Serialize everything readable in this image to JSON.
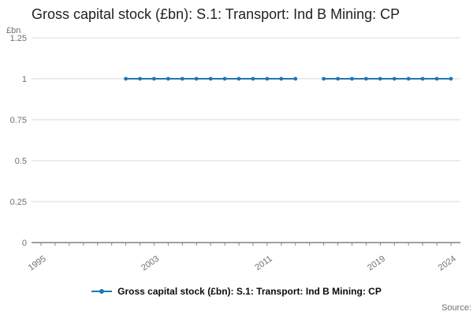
{
  "header": {
    "title": "Gross capital stock (£bn): S.1: Transport: Ind B Mining: CP"
  },
  "chart_data": {
    "type": "line",
    "title": "Gross capital stock (£bn): S.1: Transport: Ind B Mining: CP",
    "xlabel": "",
    "ylabel": "£bn",
    "ylim": [
      0,
      1.25
    ],
    "y_ticks": [
      0,
      0.25,
      0.5,
      0.75,
      1,
      1.25
    ],
    "x_range": [
      1995,
      2024
    ],
    "x_ticks": [
      1995,
      2003,
      2011,
      2019,
      2024
    ],
    "grid": true,
    "legend_position": "bottom",
    "series": [
      {
        "name": "Gross capital stock (£bn): S.1: Transport: Ind B Mining: CP",
        "color": "#1f77b4",
        "x": [
          2001,
          2002,
          2003,
          2004,
          2005,
          2006,
          2007,
          2008,
          2009,
          2010,
          2011,
          2012,
          2013,
          2014,
          2015,
          2016,
          2017,
          2018,
          2019,
          2020,
          2021,
          2022,
          2023,
          2024
        ],
        "y": [
          1,
          1,
          1,
          1,
          1,
          1,
          1,
          1,
          1,
          1,
          1,
          1,
          1,
          null,
          1,
          1,
          1,
          1,
          1,
          1,
          1,
          1,
          1,
          1
        ]
      }
    ]
  },
  "legend": {
    "label": "Gross capital stock (£bn): S.1: Transport: Ind B Mining: CP"
  },
  "footer": {
    "source": "Source:"
  }
}
